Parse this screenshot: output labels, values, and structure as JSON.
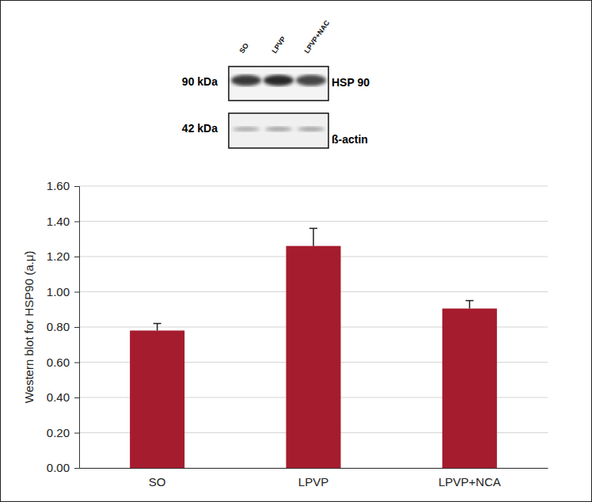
{
  "chart_data": {
    "type": "bar",
    "y_label": "Western blot for HSP90 (a.μ)",
    "categories": [
      "SO",
      "LPVP",
      "LPVP+NCA"
    ],
    "values": [
      0.78,
      1.26,
      0.905
    ],
    "errors": [
      0.04,
      0.1,
      0.045
    ],
    "color": "#a51c2e",
    "ylim": [
      0,
      1.6
    ],
    "yticks": [
      {
        "value": 0,
        "label": "0.00"
      },
      {
        "value": 0.2,
        "label": "0.20"
      },
      {
        "value": 0.4,
        "label": "0.40"
      },
      {
        "value": 0.6,
        "label": "0.60"
      },
      {
        "value": 0.8,
        "label": "0.80"
      },
      {
        "value": 1.0,
        "label": "1.00"
      },
      {
        "value": 1.2,
        "label": "1.20"
      },
      {
        "value": 1.4,
        "label": "1.40"
      },
      {
        "value": 1.6,
        "label": "1.60"
      }
    ],
    "grid": true,
    "blot": {
      "lanes": [
        "SO",
        "LPVP",
        "LPVP+NAC"
      ],
      "rows": [
        {
          "size": "90 kDa",
          "label": "HSP 90"
        },
        {
          "size": "42 kDa",
          "label": "ß-actin"
        }
      ]
    }
  }
}
